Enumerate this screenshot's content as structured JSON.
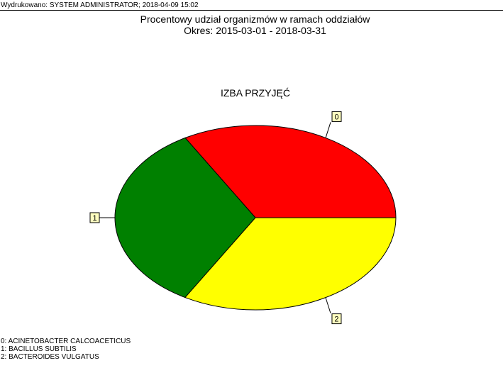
{
  "header": {
    "printed_by": "Wydrukowano: SYSTEM ADMINISTRATOR; 2018-04-09 15:02"
  },
  "report": {
    "title": "Procentowy udział organizmów w ramach oddziałów",
    "period": "Okres: 2015-03-01 - 2018-03-31"
  },
  "chart_data": {
    "type": "pie",
    "title": "IZBA PRZYJĘĆ",
    "slices": [
      {
        "label": "0",
        "value": 33.33,
        "color": "#ff0000"
      },
      {
        "label": "1",
        "value": 33.33,
        "color": "#008000"
      },
      {
        "label": "2",
        "value": 33.34,
        "color": "#ffff00"
      }
    ]
  },
  "legend": {
    "items": [
      "0: ACINETOBACTER CALCOACETICUS",
      "1: BACILLUS SUBTILIS",
      "2: BACTEROIDES VULGATUS"
    ]
  }
}
